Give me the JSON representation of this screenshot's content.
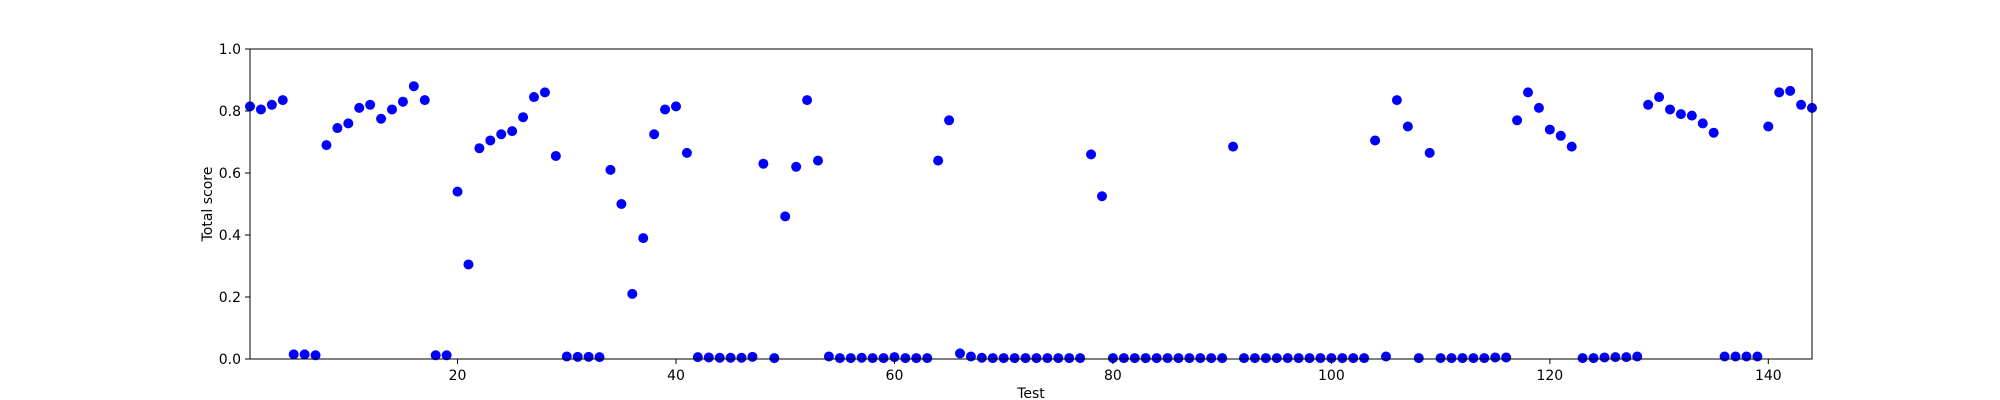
{
  "chart_data": {
    "type": "scatter",
    "xlabel": "Test",
    "ylabel": "Total score",
    "xlim": [
      1,
      144
    ],
    "ylim": [
      0,
      1
    ],
    "xticks": [
      20,
      40,
      60,
      80,
      100,
      120,
      140
    ],
    "yticks": [
      0.0,
      0.2,
      0.4,
      0.6,
      0.8,
      1.0
    ],
    "ytick_labels": [
      "0.0",
      "0.2",
      "0.4",
      "0.6",
      "0.8",
      "1.0"
    ],
    "grid": false,
    "marker_color": "#0000ff",
    "series": [
      {
        "x": [
          1,
          2,
          3,
          4,
          5,
          6,
          7,
          8,
          9,
          10,
          11,
          12,
          13,
          14,
          15,
          16,
          17,
          18,
          19,
          20,
          21,
          22,
          23,
          24,
          25,
          26,
          27,
          28,
          29,
          30,
          31,
          32,
          33,
          34,
          35,
          36,
          37,
          38,
          39,
          40,
          41,
          42,
          43,
          44,
          45,
          46,
          47,
          48,
          49,
          50,
          51,
          52,
          53,
          54,
          55,
          56,
          57,
          58,
          59,
          60,
          61,
          62,
          63,
          64,
          65,
          66,
          67,
          68,
          69,
          70,
          71,
          72,
          73,
          74,
          75,
          76,
          77,
          78,
          79,
          80,
          81,
          82,
          83,
          84,
          85,
          86,
          87,
          88,
          89,
          90,
          91,
          92,
          93,
          94,
          95,
          96,
          97,
          98,
          99,
          100,
          101,
          102,
          103,
          104,
          105,
          106,
          107,
          108,
          109,
          110,
          111,
          112,
          113,
          114,
          115,
          116,
          117,
          118,
          119,
          120,
          121,
          122,
          123,
          124,
          125,
          126,
          127,
          128,
          129,
          130,
          131,
          132,
          133,
          134,
          135,
          136,
          137,
          138,
          139,
          140,
          141,
          142,
          143,
          144
        ],
        "y": [
          0.815,
          0.805,
          0.82,
          0.835,
          0.015,
          0.015,
          0.012,
          0.69,
          0.745,
          0.76,
          0.81,
          0.82,
          0.775,
          0.805,
          0.83,
          0.88,
          0.835,
          0.012,
          0.012,
          0.54,
          0.305,
          0.68,
          0.705,
          0.725,
          0.735,
          0.78,
          0.845,
          0.86,
          0.655,
          0.008,
          0.007,
          0.007,
          0.006,
          0.61,
          0.5,
          0.21,
          0.39,
          0.725,
          0.805,
          0.815,
          0.665,
          0.006,
          0.005,
          0.004,
          0.004,
          0.004,
          0.007,
          0.63,
          0.003,
          0.46,
          0.62,
          0.835,
          0.64,
          0.008,
          0.003,
          0.003,
          0.004,
          0.003,
          0.003,
          0.006,
          0.003,
          0.003,
          0.003,
          0.64,
          0.77,
          0.018,
          0.008,
          0.004,
          0.003,
          0.003,
          0.003,
          0.003,
          0.003,
          0.003,
          0.003,
          0.003,
          0.003,
          0.66,
          0.525,
          0.003,
          0.003,
          0.003,
          0.003,
          0.003,
          0.003,
          0.003,
          0.003,
          0.003,
          0.003,
          0.003,
          0.685,
          0.003,
          0.003,
          0.003,
          0.003,
          0.003,
          0.003,
          0.003,
          0.003,
          0.003,
          0.003,
          0.003,
          0.003,
          0.705,
          0.008,
          0.835,
          0.75,
          0.003,
          0.665,
          0.003,
          0.003,
          0.003,
          0.003,
          0.003,
          0.005,
          0.005,
          0.77,
          0.86,
          0.81,
          0.74,
          0.72,
          0.685,
          0.003,
          0.003,
          0.005,
          0.006,
          0.006,
          0.008,
          0.82,
          0.845,
          0.805,
          0.79,
          0.785,
          0.76,
          0.73,
          0.008,
          0.008,
          0.008,
          0.008,
          0.75,
          0.86,
          0.865,
          0.82,
          0.81
        ]
      }
    ]
  }
}
